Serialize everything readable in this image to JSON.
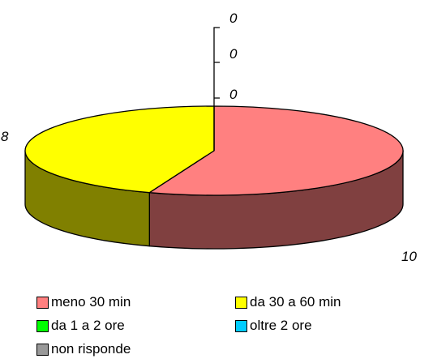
{
  "chart_data": {
    "type": "pie",
    "three_d": true,
    "categories": [
      "meno 30 min",
      "da 30 a 60 min",
      "da 1 a 2 ore",
      "oltre 2 ore",
      "non risponde"
    ],
    "values": [
      10,
      8,
      0,
      0,
      0
    ],
    "colors": [
      "#ff8080",
      "#ffff00",
      "#00ff00",
      "#00ccff",
      "#999999"
    ],
    "side_colors": [
      "#804040",
      "#808000",
      "#008000",
      "#006680",
      "#4d4d4d"
    ],
    "data_labels": [
      "10",
      "8",
      "0",
      "0",
      "0"
    ],
    "legend_position": "bottom",
    "title": ""
  }
}
